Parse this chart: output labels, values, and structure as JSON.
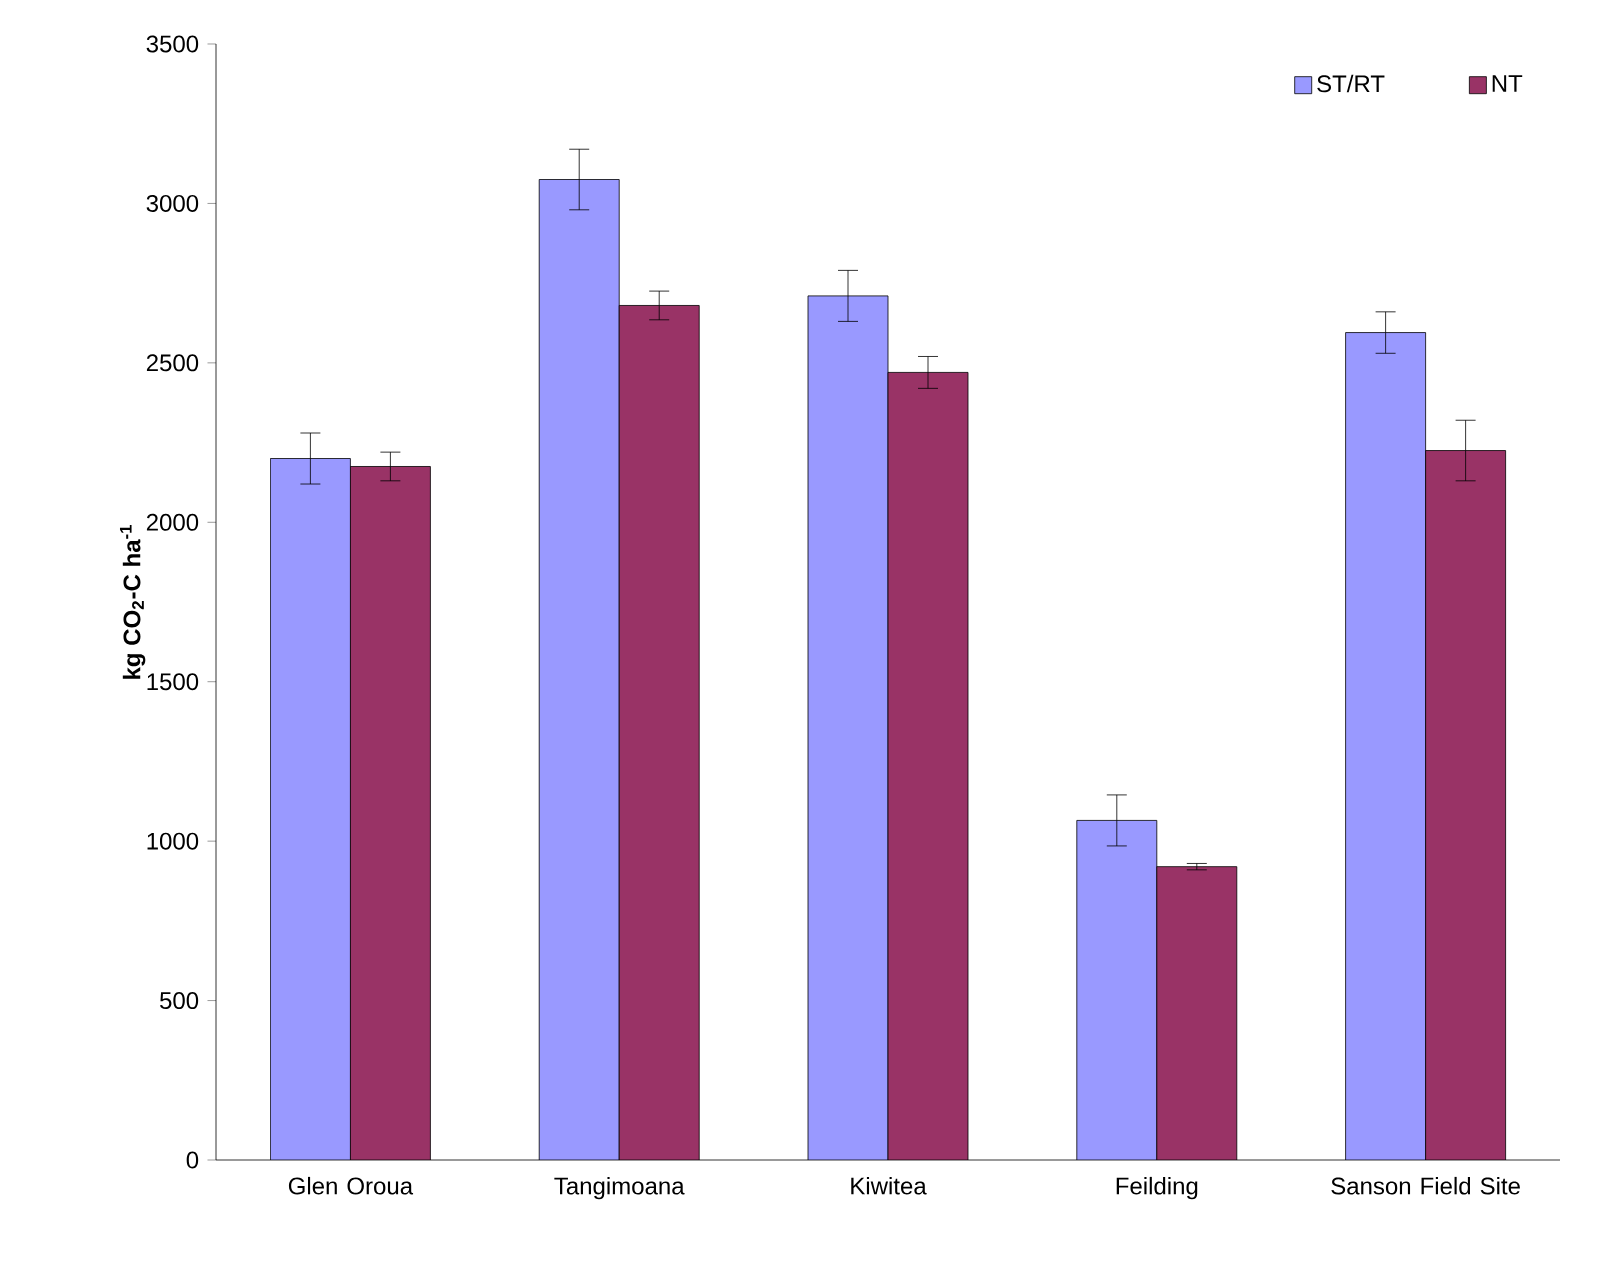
{
  "chart_data": {
    "type": "bar",
    "ylabel": "**kg CO$_{2}$-C ha$^{-1}$**",
    "categories": [
      "Glen Oroua",
      "Tangimoana",
      "Kiwitea",
      "Feilding",
      "Sanson Field Site"
    ],
    "series": [
      {
        "name": "ST/RT",
        "color": "#9999ff",
        "values": [
          2200,
          3075,
          2710,
          1065,
          2595
        ],
        "errors": [
          80,
          95,
          80,
          80,
          65
        ]
      },
      {
        "name": "NT",
        "color": "#993366",
        "values": [
          2175,
          2680,
          2470,
          920,
          2225
        ],
        "errors": [
          45,
          45,
          50,
          10,
          95
        ]
      }
    ],
    "ylim": [
      0,
      3500
    ],
    "yticks": [
      0,
      500,
      1000,
      1500,
      2000,
      2500,
      3000,
      3500
    ],
    "legend": "top right"
  }
}
